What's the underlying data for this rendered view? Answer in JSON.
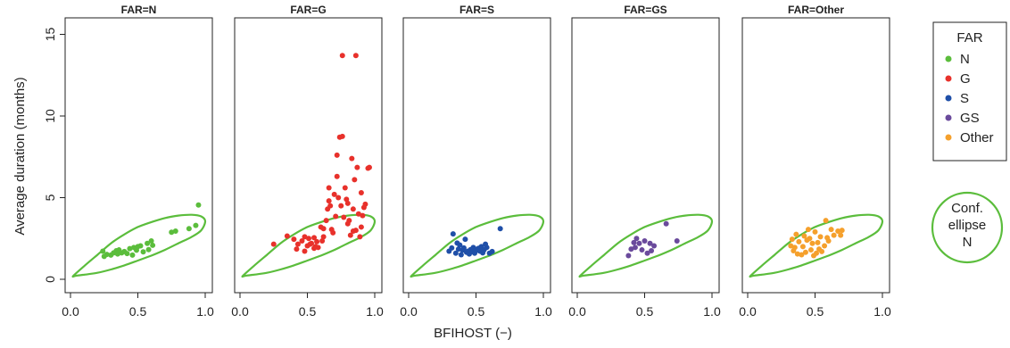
{
  "chart_data": {
    "type": "scatter",
    "xlabel": "BFIHOST (−)",
    "ylabel": "Average duration (months)",
    "xlim": [
      0,
      1
    ],
    "ylim": [
      0,
      15.5
    ],
    "x_ticks": [
      "0.0",
      "0.5",
      "1.0"
    ],
    "y_ticks": [
      "0",
      "5",
      "10",
      "15"
    ],
    "legend": {
      "title": "FAR",
      "placement": "right",
      "entries": [
        {
          "label": "N",
          "color": "#5bbd3c"
        },
        {
          "label": "G",
          "color": "#e8312b"
        },
        {
          "label": "S",
          "color": "#1f4fa8"
        },
        {
          "label": "GS",
          "color": "#6a4a9c"
        },
        {
          "label": "Other",
          "color": "#f5a02c"
        }
      ]
    },
    "ellipse_legend": {
      "lines": [
        "Conf.",
        "ellipse",
        "N"
      ],
      "color": "#5bbd3c"
    },
    "ellipse": {
      "color": "#5bbd3c",
      "points": [
        [
          0.02,
          0.2
        ],
        [
          0.1,
          0.8
        ],
        [
          0.2,
          1.5
        ],
        [
          0.3,
          2.2
        ],
        [
          0.4,
          2.75
        ],
        [
          0.5,
          3.2
        ],
        [
          0.6,
          3.5
        ],
        [
          0.7,
          3.75
        ],
        [
          0.8,
          3.9
        ],
        [
          0.9,
          3.95
        ],
        [
          0.97,
          3.85
        ],
        [
          1.0,
          3.55
        ],
        [
          0.97,
          3.0
        ],
        [
          0.9,
          2.6
        ],
        [
          0.8,
          2.2
        ],
        [
          0.7,
          1.8
        ],
        [
          0.6,
          1.45
        ],
        [
          0.5,
          1.15
        ],
        [
          0.4,
          0.85
        ],
        [
          0.3,
          0.6
        ],
        [
          0.2,
          0.4
        ],
        [
          0.1,
          0.28
        ],
        [
          0.04,
          0.22
        ]
      ]
    },
    "panels": [
      {
        "title": "FAR=N",
        "color": "#5bbd3c",
        "points": [
          [
            0.24,
            1.72
          ],
          [
            0.25,
            1.4
          ],
          [
            0.27,
            1.52
          ],
          [
            0.3,
            1.48
          ],
          [
            0.32,
            1.62
          ],
          [
            0.34,
            1.75
          ],
          [
            0.35,
            1.55
          ],
          [
            0.36,
            1.8
          ],
          [
            0.38,
            1.62
          ],
          [
            0.4,
            1.7
          ],
          [
            0.42,
            1.58
          ],
          [
            0.44,
            1.88
          ],
          [
            0.46,
            1.48
          ],
          [
            0.47,
            1.95
          ],
          [
            0.49,
            1.78
          ],
          [
            0.5,
            2.0
          ],
          [
            0.52,
            2.05
          ],
          [
            0.54,
            1.68
          ],
          [
            0.57,
            2.2
          ],
          [
            0.58,
            1.82
          ],
          [
            0.6,
            2.35
          ],
          [
            0.61,
            2.08
          ],
          [
            0.75,
            2.88
          ],
          [
            0.78,
            2.95
          ],
          [
            0.88,
            3.1
          ],
          [
            0.93,
            3.3
          ],
          [
            0.95,
            4.55
          ]
        ]
      },
      {
        "title": "FAR=G",
        "color": "#e8312b",
        "points": [
          [
            0.25,
            2.15
          ],
          [
            0.35,
            2.65
          ],
          [
            0.4,
            2.45
          ],
          [
            0.43,
            2.15
          ],
          [
            0.46,
            2.35
          ],
          [
            0.48,
            1.72
          ],
          [
            0.5,
            2.05
          ],
          [
            0.51,
            2.5
          ],
          [
            0.52,
            2.15
          ],
          [
            0.53,
            2.2
          ],
          [
            0.55,
            2.55
          ],
          [
            0.56,
            2.0
          ],
          [
            0.57,
            2.3
          ],
          [
            0.58,
            1.95
          ],
          [
            0.6,
            3.2
          ],
          [
            0.61,
            2.35
          ],
          [
            0.62,
            3.1
          ],
          [
            0.64,
            3.6
          ],
          [
            0.65,
            4.3
          ],
          [
            0.66,
            5.6
          ],
          [
            0.67,
            4.5
          ],
          [
            0.69,
            2.85
          ],
          [
            0.7,
            5.2
          ],
          [
            0.71,
            3.85
          ],
          [
            0.72,
            6.3
          ],
          [
            0.73,
            5.0
          ],
          [
            0.74,
            8.7
          ],
          [
            0.75,
            4.5
          ],
          [
            0.76,
            13.7
          ],
          [
            0.77,
            3.8
          ],
          [
            0.78,
            5.6
          ],
          [
            0.79,
            4.9
          ],
          [
            0.8,
            4.65
          ],
          [
            0.81,
            3.6
          ],
          [
            0.82,
            2.7
          ],
          [
            0.83,
            7.4
          ],
          [
            0.84,
            4.3
          ],
          [
            0.85,
            6.1
          ],
          [
            0.86,
            13.7
          ],
          [
            0.86,
            3.0
          ],
          [
            0.87,
            6.85
          ],
          [
            0.88,
            4.0
          ],
          [
            0.89,
            2.6
          ],
          [
            0.9,
            5.3
          ],
          [
            0.91,
            3.9
          ],
          [
            0.93,
            4.6
          ],
          [
            0.95,
            6.8
          ],
          [
            0.96,
            6.85
          ],
          [
            0.42,
            1.85
          ],
          [
            0.55,
            1.9
          ],
          [
            0.48,
            2.6
          ],
          [
            0.62,
            2.6
          ],
          [
            0.68,
            3.05
          ],
          [
            0.72,
            7.6
          ],
          [
            0.76,
            8.75
          ],
          [
            0.8,
            3.4
          ],
          [
            0.84,
            2.95
          ],
          [
            0.9,
            3.2
          ],
          [
            0.92,
            4.4
          ],
          [
            0.66,
            4.8
          ]
        ]
      },
      {
        "title": "FAR=S",
        "color": "#1f4fa8",
        "points": [
          [
            0.3,
            1.72
          ],
          [
            0.32,
            1.92
          ],
          [
            0.33,
            2.78
          ],
          [
            0.35,
            1.6
          ],
          [
            0.36,
            2.22
          ],
          [
            0.37,
            1.85
          ],
          [
            0.38,
            2.1
          ],
          [
            0.39,
            1.5
          ],
          [
            0.4,
            1.78
          ],
          [
            0.41,
            1.92
          ],
          [
            0.42,
            2.45
          ],
          [
            0.43,
            1.65
          ],
          [
            0.44,
            1.72
          ],
          [
            0.45,
            1.55
          ],
          [
            0.46,
            1.82
          ],
          [
            0.47,
            1.7
          ],
          [
            0.48,
            1.95
          ],
          [
            0.49,
            1.6
          ],
          [
            0.5,
            1.75
          ],
          [
            0.51,
            1.85
          ],
          [
            0.52,
            1.9
          ],
          [
            0.53,
            1.72
          ],
          [
            0.54,
            2.0
          ],
          [
            0.55,
            1.62
          ],
          [
            0.56,
            1.8
          ],
          [
            0.57,
            2.15
          ],
          [
            0.58,
            1.95
          ],
          [
            0.6,
            1.6
          ],
          [
            0.62,
            1.7
          ],
          [
            0.68,
            3.1
          ]
        ]
      },
      {
        "title": "FAR=GS",
        "color": "#6a4a9c",
        "points": [
          [
            0.38,
            1.45
          ],
          [
            0.4,
            1.85
          ],
          [
            0.42,
            2.25
          ],
          [
            0.43,
            1.95
          ],
          [
            0.44,
            2.5
          ],
          [
            0.46,
            2.2
          ],
          [
            0.48,
            1.8
          ],
          [
            0.5,
            2.35
          ],
          [
            0.52,
            1.6
          ],
          [
            0.54,
            2.2
          ],
          [
            0.55,
            1.75
          ],
          [
            0.57,
            2.05
          ],
          [
            0.66,
            3.4
          ],
          [
            0.74,
            2.35
          ]
        ]
      },
      {
        "title": "FAR=Other",
        "color": "#f5a02c",
        "points": [
          [
            0.32,
            2.05
          ],
          [
            0.33,
            2.45
          ],
          [
            0.34,
            1.75
          ],
          [
            0.35,
            1.95
          ],
          [
            0.36,
            2.75
          ],
          [
            0.37,
            1.55
          ],
          [
            0.38,
            2.3
          ],
          [
            0.4,
            1.5
          ],
          [
            0.41,
            2.0
          ],
          [
            0.42,
            2.65
          ],
          [
            0.43,
            1.65
          ],
          [
            0.44,
            2.4
          ],
          [
            0.45,
            3.05
          ],
          [
            0.46,
            2.5
          ],
          [
            0.47,
            1.8
          ],
          [
            0.48,
            2.2
          ],
          [
            0.49,
            1.45
          ],
          [
            0.5,
            2.9
          ],
          [
            0.51,
            1.6
          ],
          [
            0.52,
            2.25
          ],
          [
            0.53,
            1.85
          ],
          [
            0.54,
            2.6
          ],
          [
            0.55,
            1.7
          ],
          [
            0.57,
            2.05
          ],
          [
            0.58,
            3.6
          ],
          [
            0.59,
            2.55
          ],
          [
            0.6,
            2.35
          ],
          [
            0.62,
            3.05
          ],
          [
            0.64,
            2.7
          ],
          [
            0.67,
            2.95
          ],
          [
            0.69,
            2.7
          ],
          [
            0.7,
            3.0
          ]
        ]
      }
    ]
  }
}
